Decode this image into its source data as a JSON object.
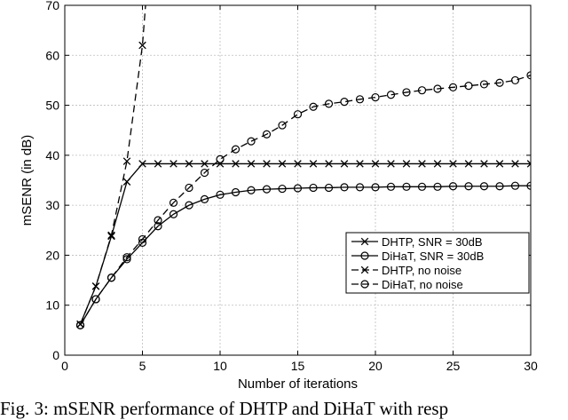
{
  "chart_data": {
    "type": "line",
    "title": "",
    "xlabel": "Number of iterations",
    "ylabel": "mSENR (in dB)",
    "xlim": [
      0,
      30
    ],
    "ylim": [
      0,
      70
    ],
    "xticks": [
      0,
      5,
      10,
      15,
      20,
      25,
      30
    ],
    "yticks": [
      0,
      10,
      20,
      30,
      40,
      50,
      60,
      70
    ],
    "grid": true,
    "legend_position": "lower-right",
    "series": [
      {
        "name": "DHTP, SNR = 30dB",
        "marker": "x",
        "linestyle": "solid",
        "x": [
          1,
          2,
          3,
          4,
          5,
          6,
          7,
          8,
          9,
          10,
          11,
          12,
          13,
          14,
          15,
          16,
          17,
          18,
          19,
          20,
          21,
          22,
          23,
          24,
          25,
          26,
          27,
          28,
          29,
          30
        ],
        "y": [
          6.2,
          13.8,
          23.8,
          34.7,
          38.3,
          38.3,
          38.3,
          38.3,
          38.3,
          38.3,
          38.3,
          38.3,
          38.3,
          38.3,
          38.3,
          38.3,
          38.3,
          38.3,
          38.3,
          38.3,
          38.3,
          38.3,
          38.3,
          38.3,
          38.3,
          38.3,
          38.3,
          38.3,
          38.3,
          38.3
        ]
      },
      {
        "name": "DiHaT, SNR = 30dB",
        "marker": "o",
        "linestyle": "solid",
        "x": [
          1,
          2,
          3,
          4,
          5,
          6,
          7,
          8,
          9,
          10,
          11,
          12,
          13,
          14,
          15,
          16,
          17,
          18,
          19,
          20,
          21,
          22,
          23,
          24,
          25,
          26,
          27,
          28,
          29,
          30
        ],
        "y": [
          6.0,
          11.2,
          15.5,
          19.2,
          22.5,
          25.8,
          28.2,
          30.0,
          31.2,
          32.1,
          32.6,
          33.0,
          33.2,
          33.3,
          33.4,
          33.5,
          33.5,
          33.6,
          33.6,
          33.6,
          33.7,
          33.7,
          33.7,
          33.7,
          33.8,
          33.8,
          33.8,
          33.8,
          33.9,
          33.9
        ]
      },
      {
        "name": "DHTP, no noise",
        "marker": "x",
        "linestyle": "dashed",
        "x": [
          1,
          2,
          3,
          4,
          5,
          5.2
        ],
        "y": [
          6.2,
          13.8,
          24.0,
          38.8,
          62.0,
          70.0
        ]
      },
      {
        "name": "DiHaT, no noise",
        "marker": "o",
        "linestyle": "dashed",
        "x": [
          1,
          2,
          3,
          4,
          5,
          6,
          7,
          8,
          9,
          10,
          11,
          12,
          13,
          14,
          15,
          16,
          17,
          18,
          19,
          20,
          21,
          22,
          23,
          24,
          25,
          26,
          27,
          28,
          29,
          30
        ],
        "y": [
          6.0,
          11.2,
          15.5,
          19.6,
          23.2,
          27.0,
          30.5,
          33.5,
          36.5,
          39.2,
          41.2,
          42.8,
          44.2,
          46.0,
          48.2,
          49.7,
          50.3,
          50.7,
          51.2,
          51.6,
          52.1,
          52.6,
          53.0,
          53.3,
          53.6,
          53.9,
          54.2,
          54.5,
          55.0,
          56.0
        ]
      }
    ]
  },
  "caption": "Fig. 3: mSENR performance of DHTP and DiHaT with resp"
}
